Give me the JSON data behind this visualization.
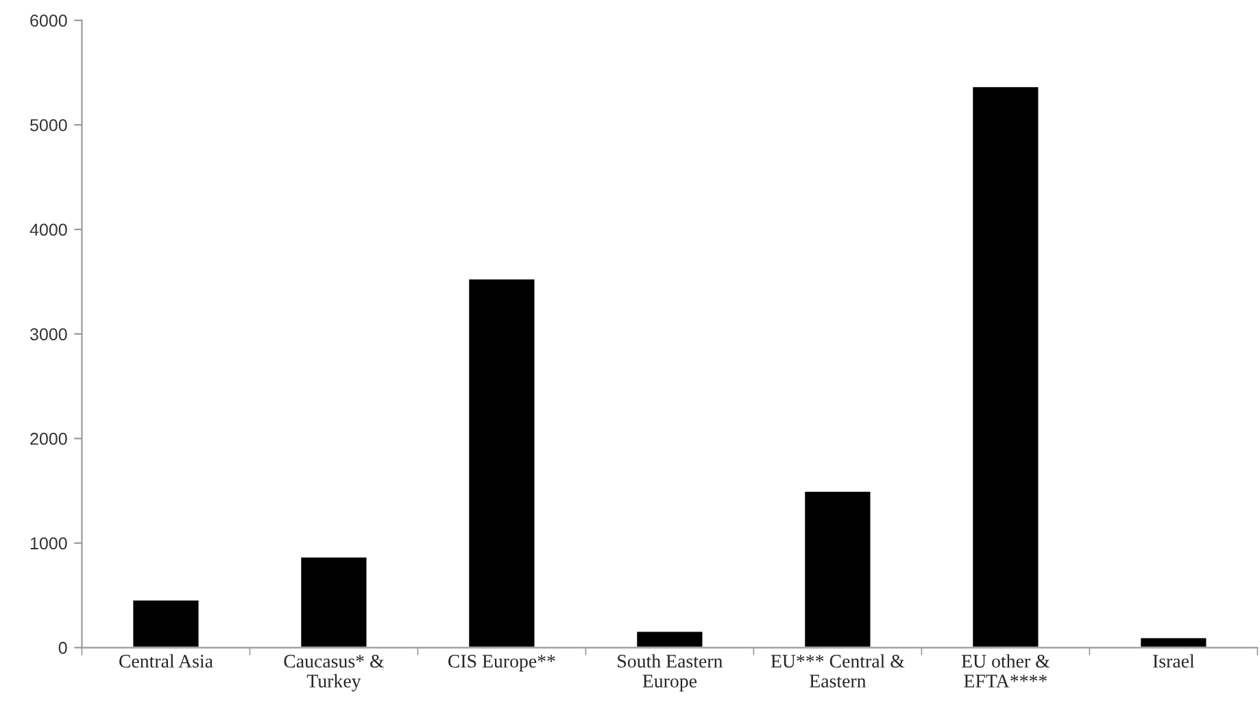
{
  "chart_data": {
    "type": "bar",
    "categories": [
      "Central Asia",
      "Caucasus* &\nTurkey",
      "CIS Europe**",
      "South Eastern\nEurope",
      "EU*** Central &\nEastern",
      "EU other &\nEFTA****",
      "Israel"
    ],
    "values": [
      460,
      870,
      3530,
      160,
      1500,
      5370,
      100
    ],
    "color": "#000000",
    "ylim": [
      0,
      6000
    ],
    "yticks": [
      0,
      1000,
      2000,
      3000,
      4000,
      5000,
      6000
    ],
    "grid": false
  }
}
